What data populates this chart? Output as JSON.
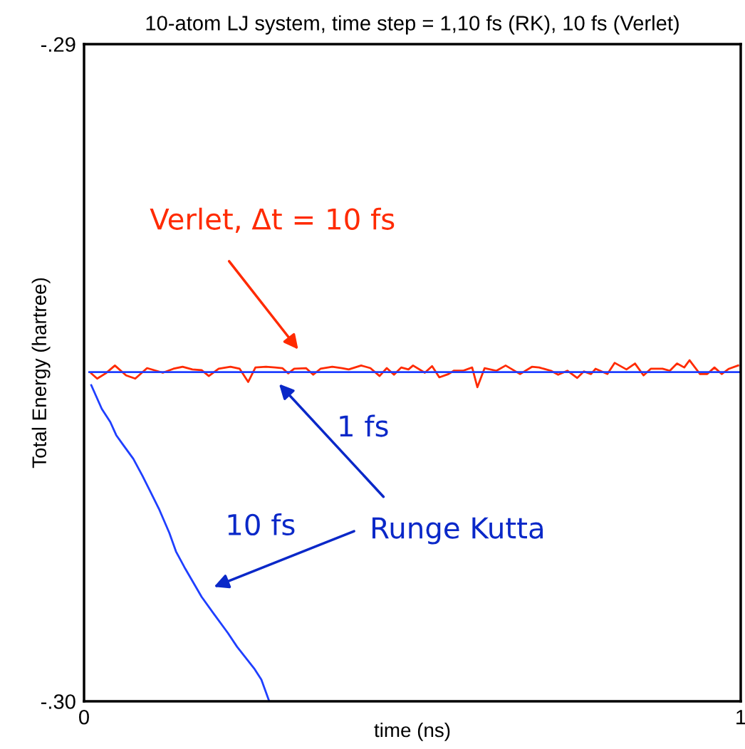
{
  "chart_data": {
    "type": "line",
    "title": "10-atom LJ system, time step = 1,10 fs (RK), 10 fs (Verlet)",
    "xlabel": "time (ns)",
    "ylabel": "Total Energy (hartree)",
    "xlim": [
      0,
      1
    ],
    "xticks": [
      0,
      1
    ],
    "ylim": [
      -0.3,
      -0.29
    ],
    "yticks": [
      {
        "value": -0.3,
        "label": "-.30"
      },
      {
        "value": -0.29,
        "label": "-.29"
      }
    ],
    "legend": false,
    "series": [
      {
        "color": "#ff2a00",
        "x": [
          0.011,
          0.02,
          0.033,
          0.047,
          0.064,
          0.078,
          0.096,
          0.12,
          0.136,
          0.15,
          0.165,
          0.179,
          0.19,
          0.205,
          0.223,
          0.237,
          0.25,
          0.261,
          0.277,
          0.291,
          0.302,
          0.311,
          0.32,
          0.338,
          0.349,
          0.36,
          0.378,
          0.393,
          0.403,
          0.422,
          0.436,
          0.45,
          0.461,
          0.472,
          0.483,
          0.494,
          0.501,
          0.519,
          0.53,
          0.541,
          0.555,
          0.563,
          0.577,
          0.591,
          0.599,
          0.61,
          0.628,
          0.642,
          0.664,
          0.682,
          0.693,
          0.711,
          0.722,
          0.736,
          0.751,
          0.761,
          0.772,
          0.779,
          0.797,
          0.808,
          0.826,
          0.839,
          0.852,
          0.863,
          0.881,
          0.892,
          0.903,
          0.914,
          0.922,
          0.938,
          0.949,
          0.96,
          0.971,
          0.982,
          0.996
        ],
        "values": [
          -0.29501,
          -0.29509,
          -0.29501,
          -0.29489,
          -0.29504,
          -0.29509,
          -0.29493,
          -0.295,
          -0.29494,
          -0.29491,
          -0.29495,
          -0.29496,
          -0.29505,
          -0.29494,
          -0.29491,
          -0.29494,
          -0.29514,
          -0.29492,
          -0.29491,
          -0.29492,
          -0.29493,
          -0.29501,
          -0.29494,
          -0.29493,
          -0.29503,
          -0.29494,
          -0.29491,
          -0.29493,
          -0.29495,
          -0.29489,
          -0.29493,
          -0.29505,
          -0.29493,
          -0.29503,
          -0.29492,
          -0.29495,
          -0.29489,
          -0.295,
          -0.2949,
          -0.29507,
          -0.29502,
          -0.29497,
          -0.29497,
          -0.29492,
          -0.29522,
          -0.29493,
          -0.29497,
          -0.29489,
          -0.29502,
          -0.29491,
          -0.29492,
          -0.29497,
          -0.29503,
          -0.29497,
          -0.29508,
          -0.29498,
          -0.29502,
          -0.29494,
          -0.29502,
          -0.29485,
          -0.29495,
          -0.29486,
          -0.29504,
          -0.29494,
          -0.29494,
          -0.29497,
          -0.29486,
          -0.29492,
          -0.29481,
          -0.29502,
          -0.29502,
          -0.29492,
          -0.29502,
          -0.29494,
          -0.29489
        ]
      },
      {
        "color": "#1f3fff",
        "x": [
          0.008,
          1.0
        ],
        "values": [
          -0.29499,
          -0.29499
        ]
      },
      {
        "color": "#1f3fff",
        "x": [
          0.011,
          0.027,
          0.04,
          0.049,
          0.059,
          0.075,
          0.089,
          0.1,
          0.114,
          0.13,
          0.14,
          0.154,
          0.179,
          0.197,
          0.219,
          0.233,
          0.259,
          0.27,
          0.282
        ],
        "values": [
          -0.29519,
          -0.29555,
          -0.29575,
          -0.29595,
          -0.29609,
          -0.29631,
          -0.29657,
          -0.29679,
          -0.29707,
          -0.29744,
          -0.29772,
          -0.29798,
          -0.29841,
          -0.29866,
          -0.29896,
          -0.29917,
          -0.2995,
          -0.29967,
          -0.3
        ]
      }
    ],
    "annotations": [
      "Verlet, Δt = 10 fs",
      "1 fs",
      "Runge Kutta",
      "10 fs"
    ]
  }
}
